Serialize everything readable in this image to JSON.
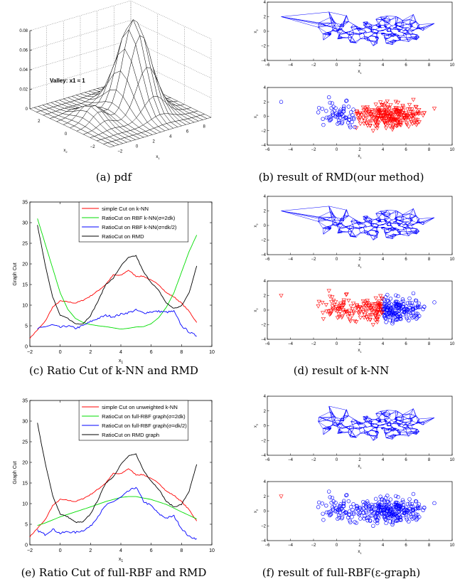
{
  "captions": {
    "a": "(a) pdf",
    "b": "(b) result of RMD(our method)",
    "c": "(c) Ratio Cut of k-NN and RMD",
    "d": "(d) result of k-NN",
    "e": "(e) Ratio Cut of full-RBF and RMD",
    "f": "(f) result of full-RBF(ε-graph)"
  },
  "chart_data": [
    {
      "id": "a",
      "type": "surface",
      "xlabel": "x1",
      "ylabel": "x2",
      "xticks": [
        -2,
        0,
        2,
        4,
        6,
        8
      ],
      "yticks": [
        -2,
        0,
        2
      ],
      "zticks": [
        0,
        0.02,
        0.04,
        0.06,
        0.08
      ],
      "zlim": [
        0,
        0.08
      ],
      "annotation": "Valley: x1 ≈ 1",
      "grid": true
    },
    {
      "id": "b",
      "type": "scatter",
      "panels": [
        "graph",
        "labels"
      ],
      "xlabel": "x1",
      "ylabel": "x2",
      "xlim": [
        -6,
        10
      ],
      "ylim": [
        -4,
        4
      ],
      "xticks": [
        -6,
        -4,
        -2,
        0,
        2,
        4,
        6,
        8,
        10
      ],
      "yticks": [
        -4,
        -2,
        0,
        2,
        4
      ],
      "split_x1": 1.6,
      "left_class": {
        "color": "#0000ff",
        "marker": "circle"
      },
      "right_class": {
        "color": "#ff0000",
        "marker": "triangle-down"
      }
    },
    {
      "id": "c",
      "type": "line",
      "xlabel": "x1",
      "ylabel": "Graph Cut",
      "xlim": [
        -2,
        10
      ],
      "ylim": [
        0,
        35
      ],
      "xticks": [
        -2,
        0,
        2,
        4,
        6,
        8,
        10
      ],
      "yticks": [
        0,
        5,
        10,
        15,
        20,
        25,
        30,
        35
      ],
      "legend_position": "top",
      "series": [
        {
          "name": "simple Cut on k-NN",
          "color": "#ff0000",
          "x": [
            -2,
            -1.5,
            -1,
            -0.5,
            0,
            0.5,
            1,
            1.5,
            2,
            2.5,
            3,
            3.5,
            4,
            4.5,
            5,
            5.5,
            6,
            6.5,
            7,
            7.5,
            8,
            8.5,
            9
          ],
          "y": [
            2,
            4,
            6,
            9.5,
            11,
            10.8,
            10.5,
            11.2,
            12.2,
            13.5,
            15,
            17.3,
            17.2,
            18.5,
            17,
            17,
            16,
            15,
            13,
            12,
            10.5,
            8.5,
            5.8
          ]
        },
        {
          "name": "RatioCut on RBF k-NN(σ=2dk)",
          "color": "#00dd00",
          "x": [
            -1.5,
            -1,
            -0.5,
            0,
            0.5,
            1,
            1.5,
            2,
            2.5,
            3,
            3.5,
            4,
            4.5,
            5,
            5.5,
            6,
            6.5,
            7,
            7.5,
            8,
            8.5,
            9
          ],
          "y": [
            31,
            25,
            19,
            13,
            9,
            6.8,
            5.8,
            5.3,
            5,
            4.8,
            4.5,
            4.2,
            4.4,
            4.7,
            4.8,
            5.5,
            7,
            9.5,
            13,
            18,
            23,
            27
          ]
        },
        {
          "name": "RatioCut on RBF k-NN(σ=dk/2)",
          "color": "#0000ff",
          "x": [
            -1.5,
            -1,
            -0.5,
            0,
            0.5,
            1,
            1.5,
            2,
            2.5,
            3,
            3.5,
            4,
            4.5,
            5,
            5.5,
            6,
            6.5,
            7,
            7.5,
            8,
            8.5,
            9
          ],
          "y": [
            4.2,
            4.8,
            5.2,
            4.6,
            5,
            4.4,
            5,
            6,
            6.8,
            7.5,
            7.2,
            7.8,
            8.2,
            8.8,
            8.1,
            8.4,
            8.5,
            8.3,
            8.5,
            5,
            3.5,
            2.5
          ]
        },
        {
          "name": "RatioCut on RMD",
          "color": "#000000",
          "x": [
            -1.5,
            -1,
            -0.5,
            0,
            0.5,
            1,
            1.5,
            2,
            2.5,
            3,
            3.5,
            4,
            4.5,
            5,
            5.5,
            6,
            6.5,
            7,
            7.5,
            8,
            8.5,
            9
          ],
          "y": [
            29.5,
            20,
            12,
            7.5,
            6.8,
            5.5,
            5.5,
            7.5,
            11,
            15,
            16.5,
            19.5,
            21.5,
            22,
            18,
            15.5,
            13.5,
            10.5,
            9.2,
            9.8,
            13,
            19.5
          ]
        }
      ]
    },
    {
      "id": "d",
      "type": "scatter",
      "panels": [
        "graph",
        "labels"
      ],
      "xlabel": "x1",
      "ylabel": "x2",
      "xlim": [
        -6,
        10
      ],
      "ylim": [
        -4,
        4
      ],
      "xticks": [
        -6,
        -4,
        -2,
        0,
        2,
        4,
        6,
        8,
        10
      ],
      "yticks": [
        -4,
        -2,
        0,
        2,
        4
      ],
      "split_x1": 4,
      "left_class": {
        "color": "#ff0000",
        "marker": "triangle-down"
      },
      "right_class": {
        "color": "#0000ff",
        "marker": "circle"
      }
    },
    {
      "id": "e",
      "type": "line",
      "xlabel": "x1",
      "ylabel": "Graph Cut",
      "xlim": [
        -2,
        10
      ],
      "ylim": [
        0,
        35
      ],
      "xticks": [
        -2,
        0,
        2,
        4,
        6,
        8,
        10
      ],
      "yticks": [
        0,
        5,
        10,
        15,
        20,
        25,
        30,
        35
      ],
      "legend_position": "top",
      "series": [
        {
          "name": "simple Cut on unweighted k-NN",
          "color": "#ff0000",
          "x": [
            -2,
            -1.5,
            -1,
            -0.5,
            0,
            0.5,
            1,
            1.5,
            2,
            2.5,
            3,
            3.5,
            4,
            4.5,
            5,
            5.5,
            6,
            6.5,
            7,
            7.5,
            8,
            8.5,
            9
          ],
          "y": [
            2,
            4,
            6,
            9.5,
            11,
            10.8,
            10.5,
            11.2,
            12.2,
            13.5,
            15,
            17.3,
            17.2,
            18.5,
            17,
            17,
            16,
            15,
            13,
            12,
            10.5,
            8.5,
            5.8
          ]
        },
        {
          "name": "RatioCut on full-RBF graph(σ=2dk)",
          "color": "#00dd00",
          "x": [
            -1.5,
            -1,
            0,
            1,
            2,
            3,
            4,
            4.5,
            5,
            6,
            7,
            8,
            9
          ],
          "y": [
            4.7,
            5.3,
            6.8,
            8,
            9.2,
            10.5,
            11.5,
            11.7,
            11.7,
            11,
            9.8,
            8,
            6.3
          ]
        },
        {
          "name": "RatioCut on full-RBF graph(σ=dk/2)",
          "color": "#0000ff",
          "x": [
            -1.5,
            -1,
            -0.5,
            0,
            0.5,
            1,
            1.5,
            2,
            2.5,
            3,
            3.5,
            4,
            4.5,
            5,
            5.5,
            6,
            6.5,
            7,
            7.5,
            8,
            8.5,
            9
          ],
          "y": [
            3.5,
            2.5,
            3.8,
            2.8,
            3.2,
            3,
            3.5,
            4.5,
            7,
            9.5,
            10.5,
            11.5,
            13,
            14,
            10.5,
            9.5,
            7.5,
            6.5,
            7,
            4,
            2,
            1.5
          ]
        },
        {
          "name": "RatioCut on RMD graph",
          "color": "#000000",
          "x": [
            -1.5,
            -1,
            -0.5,
            0,
            0.5,
            1,
            1.5,
            2,
            2.5,
            3,
            3.5,
            4,
            4.5,
            5,
            5.5,
            6,
            6.5,
            7,
            7.5,
            8,
            8.5,
            9
          ],
          "y": [
            29.5,
            20,
            12,
            7.5,
            6.8,
            5.5,
            5.5,
            7.5,
            11,
            15,
            16.5,
            19.5,
            21.5,
            22,
            18,
            15.5,
            13.5,
            10.5,
            9.2,
            9.8,
            13,
            19.5
          ]
        }
      ]
    },
    {
      "id": "f",
      "type": "scatter",
      "panels": [
        "graph",
        "labels"
      ],
      "xlabel": "x1",
      "ylabel": "x2",
      "xlim": [
        -6,
        10
      ],
      "ylim": [
        -4,
        4
      ],
      "xticks": [
        -6,
        -4,
        -2,
        0,
        2,
        4,
        6,
        8,
        10
      ],
      "yticks": [
        -4,
        -2,
        0,
        2,
        4
      ],
      "main_class": {
        "color": "#0000ff",
        "marker": "circle"
      },
      "outlier_class": {
        "color": "#ff0000",
        "marker": "triangle-down"
      }
    }
  ]
}
